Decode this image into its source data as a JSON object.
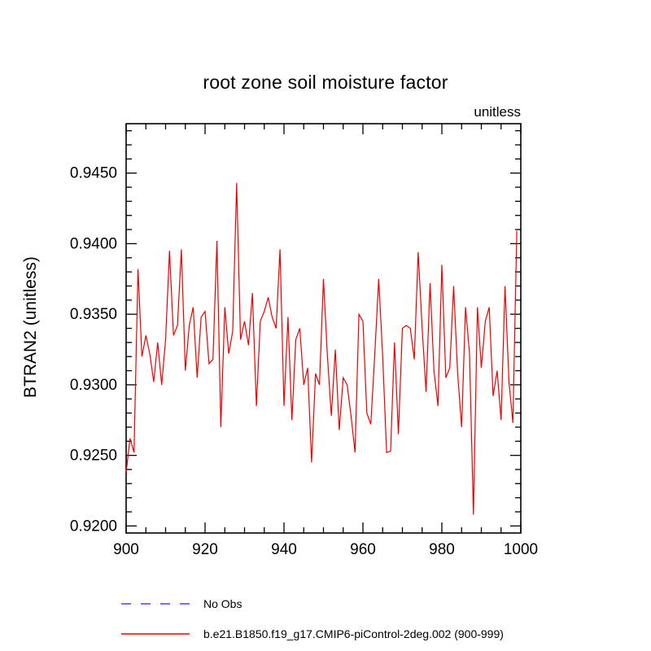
{
  "chart_data": {
    "type": "line",
    "title": "root zone soil moisture factor",
    "units": "unitless",
    "ylabel": "BTRAN2  (unitless)",
    "xlabel": "",
    "xlim": [
      900,
      1000
    ],
    "ylim": [
      0.9195,
      0.9485
    ],
    "xticks": [
      900,
      920,
      940,
      960,
      980,
      1000
    ],
    "xtick_labels": [
      "900",
      "920",
      "940",
      "960",
      "980",
      "1000"
    ],
    "x_minor_step": 5,
    "yticks": [
      0.92,
      0.925,
      0.93,
      0.935,
      0.94,
      0.945
    ],
    "ytick_labels": [
      "0.9200",
      "0.9250",
      "0.9300",
      "0.9350",
      "0.9400",
      "0.9450"
    ],
    "y_minor_step": 0.001,
    "grid": false,
    "legend_position": "bottom-left",
    "frame_color": "#000000",
    "x_start": 900,
    "x_step": 1,
    "series": [
      {
        "name": "No Obs",
        "color": "#4444ff",
        "dash": "12 12",
        "values": null
      },
      {
        "name": "b.e21.B1850.f19_g17.CMIP6-piControl-2deg.002 (900-999)",
        "color": "#ee0000",
        "dash": null,
        "values": [
          0.9238,
          0.9262,
          0.9252,
          0.9382,
          0.932,
          0.9335,
          0.9322,
          0.9302,
          0.933,
          0.93,
          0.9332,
          0.9395,
          0.9335,
          0.9342,
          0.9396,
          0.931,
          0.9342,
          0.9355,
          0.9305,
          0.9348,
          0.9352,
          0.9315,
          0.9318,
          0.9402,
          0.927,
          0.9355,
          0.9322,
          0.9338,
          0.9443,
          0.9332,
          0.9345,
          0.9328,
          0.9365,
          0.9285,
          0.9345,
          0.9352,
          0.9362,
          0.9348,
          0.934,
          0.9396,
          0.9285,
          0.9348,
          0.9275,
          0.9332,
          0.934,
          0.93,
          0.9312,
          0.9245,
          0.9308,
          0.93,
          0.9375,
          0.932,
          0.9278,
          0.9325,
          0.9268,
          0.9305,
          0.93,
          0.9278,
          0.9252,
          0.935,
          0.9345,
          0.928,
          0.9272,
          0.9322,
          0.9375,
          0.932,
          0.9252,
          0.9253,
          0.933,
          0.9265,
          0.934,
          0.9342,
          0.934,
          0.9318,
          0.9394,
          0.934,
          0.9295,
          0.9372,
          0.931,
          0.9285,
          0.9385,
          0.9305,
          0.9312,
          0.937,
          0.9308,
          0.927,
          0.9355,
          0.9322,
          0.9208,
          0.9355,
          0.9312,
          0.9345,
          0.9355,
          0.9292,
          0.931,
          0.9275,
          0.937,
          0.9302,
          0.9273,
          0.9409
        ]
      }
    ]
  }
}
